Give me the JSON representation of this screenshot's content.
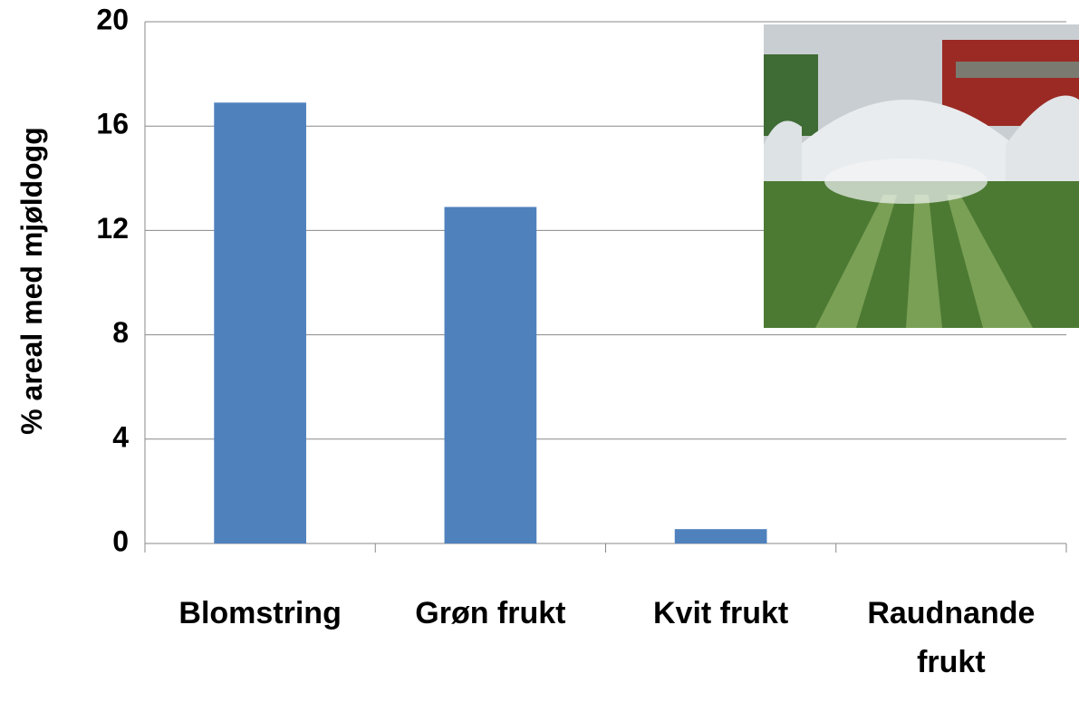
{
  "chart_data": {
    "type": "bar",
    "y_label": "% areal med mjøldogg",
    "categories": [
      "Blomstring",
      "Grøn frukt",
      "Kvit frukt",
      "Raudnande frukt"
    ],
    "values": [
      16.9,
      12.9,
      0.55,
      0
    ],
    "color": "#4f81bd",
    "ylim": [
      0,
      20
    ],
    "yticks": [
      0,
      4,
      8,
      12,
      16,
      20
    ],
    "grid": true
  }
}
